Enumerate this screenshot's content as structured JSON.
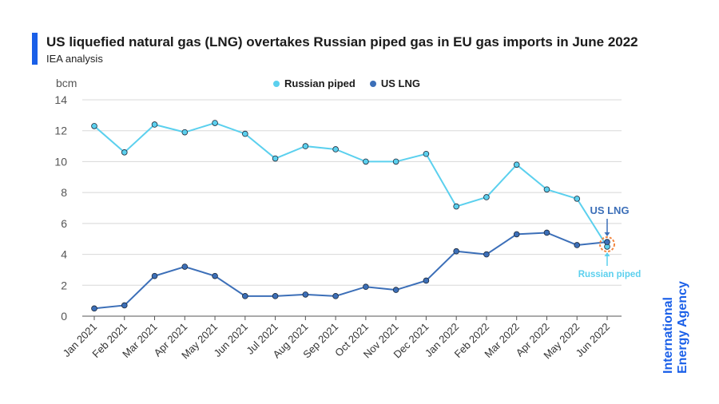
{
  "header": {
    "title": "US liquefied natural gas (LNG) overtakes Russian piped gas in EU gas imports in June 2022",
    "subtitle": "IEA analysis"
  },
  "brand": {
    "line1": "International",
    "line2": "Energy Agency"
  },
  "colors": {
    "russian": "#5bd0ee",
    "us": "#3c6fb8",
    "accent": "#1a5fe8",
    "annotation_ring": "#f2863f",
    "grid": "#d8d8d8"
  },
  "chart_data": {
    "type": "line",
    "ylabel": "bcm",
    "ylim": [
      0,
      14
    ],
    "yticks": [
      0,
      2,
      4,
      6,
      8,
      10,
      12,
      14
    ],
    "grid": "horizontal",
    "legend_position": "top",
    "categories": [
      "Jan 2021",
      "Feb 2021",
      "Mar 2021",
      "Apr 2021",
      "May 2021",
      "Jun 2021",
      "Jul 2021",
      "Aug 2021",
      "Sep 2021",
      "Oct 2021",
      "Nov 2021",
      "Dec 2021",
      "Jan 2022",
      "Feb 2022",
      "Mar 2022",
      "Apr 2022",
      "May 2022",
      "Jun 2022"
    ],
    "series": [
      {
        "name": "Russian piped",
        "values": [
          12.3,
          10.6,
          12.4,
          11.9,
          12.5,
          11.8,
          10.2,
          11.0,
          10.8,
          10.0,
          10.0,
          10.5,
          7.1,
          7.7,
          9.8,
          8.2,
          7.6,
          4.5
        ]
      },
      {
        "name": "US LNG",
        "values": [
          0.5,
          0.7,
          2.6,
          3.2,
          2.6,
          1.3,
          1.3,
          1.4,
          1.3,
          1.9,
          1.7,
          2.3,
          4.2,
          4.0,
          5.3,
          5.4,
          4.6,
          4.8
        ]
      }
    ],
    "annotations": [
      {
        "text": "US LNG",
        "category": "Jun 2022"
      },
      {
        "text": "Russian piped",
        "category": "Jun 2022"
      }
    ]
  }
}
